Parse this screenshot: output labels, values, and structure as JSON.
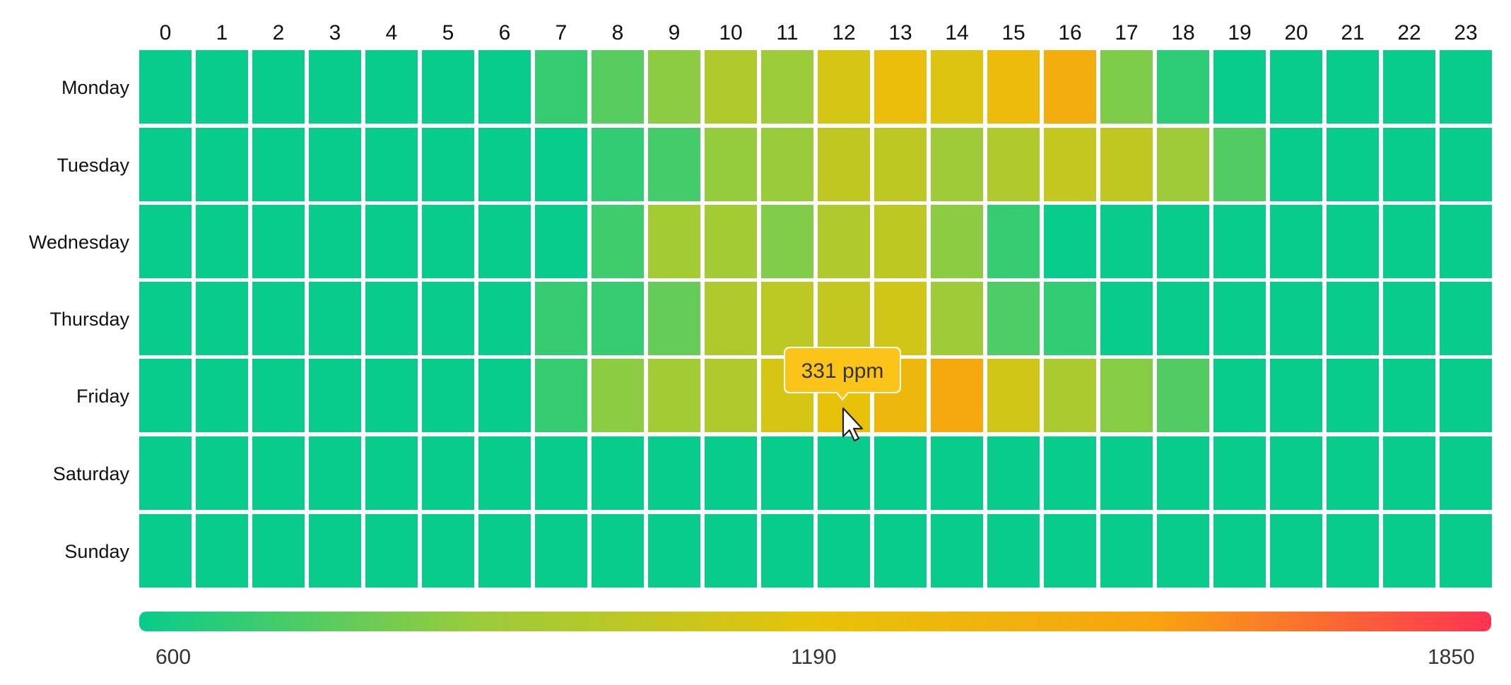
{
  "chart_data": {
    "type": "heatmap",
    "x": [
      "0",
      "1",
      "2",
      "3",
      "4",
      "5",
      "6",
      "7",
      "8",
      "9",
      "10",
      "11",
      "12",
      "13",
      "14",
      "15",
      "16",
      "17",
      "18",
      "19",
      "20",
      "21",
      "22",
      "23"
    ],
    "y": [
      "Monday",
      "Tuesday",
      "Wednesday",
      "Thursday",
      "Friday",
      "Saturday",
      "Sunday"
    ],
    "color_scale": {
      "min": 600,
      "max": 1850,
      "tick_labels": [
        "600",
        "1190",
        "1850"
      ],
      "colors": [
        "#07cc8c",
        "#9acc3a",
        "#e7c309",
        "#f8a410",
        "#ff3352"
      ]
    },
    "values": [
      [
        600,
        600,
        600,
        600,
        600,
        600,
        600,
        700,
        770,
        880,
        1000,
        920,
        1150,
        1280,
        1180,
        1310,
        1450,
        850,
        680,
        600,
        600,
        600,
        600,
        600
      ],
      [
        600,
        600,
        600,
        600,
        600,
        600,
        600,
        600,
        690,
        730,
        900,
        910,
        1070,
        1060,
        930,
        1000,
        1080,
        1070,
        930,
        760,
        600,
        600,
        600,
        600
      ],
      [
        600,
        600,
        600,
        600,
        600,
        600,
        600,
        600,
        720,
        950,
        950,
        860,
        1000,
        1060,
        880,
        700,
        600,
        600,
        600,
        600,
        600,
        600,
        600,
        600
      ],
      [
        600,
        600,
        600,
        600,
        600,
        600,
        600,
        700,
        700,
        800,
        1000,
        1050,
        1080,
        1130,
        930,
        750,
        690,
        600,
        600,
        600,
        600,
        600,
        600,
        600
      ],
      [
        600,
        600,
        600,
        600,
        600,
        600,
        600,
        700,
        880,
        950,
        1000,
        1150,
        1250,
        1350,
        1500,
        1130,
        980,
        870,
        760,
        600,
        600,
        600,
        600,
        600
      ],
      [
        600,
        600,
        600,
        600,
        600,
        600,
        600,
        600,
        600,
        600,
        600,
        600,
        600,
        600,
        600,
        600,
        600,
        600,
        600,
        600,
        600,
        600,
        600,
        600
      ],
      [
        600,
        600,
        600,
        600,
        600,
        600,
        600,
        600,
        600,
        600,
        600,
        600,
        600,
        600,
        600,
        600,
        600,
        600,
        600,
        600,
        600,
        600,
        600,
        600
      ]
    ],
    "tooltip": {
      "text": "331 ppm",
      "day": "Friday",
      "hour": "12"
    }
  }
}
